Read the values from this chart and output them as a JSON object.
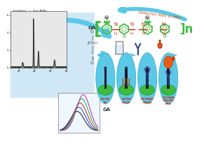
{
  "bg_color": "#ffffff",
  "cell_ellipse_color": "#5bc8e8",
  "cell_green_color": "#3dbb3d",
  "cell_dark_color": "#1a1a2e",
  "bottom_text": "Aniline + Ag NPs\nin 1 M HCl",
  "arrow_color_blue": "#5bc8e8",
  "detect_text": "Detection SWV in PBS :",
  "ga_label": "GA",
  "chem_color": "#44bb44",
  "red_label_color": "#cc2200",
  "orange_color": "#e85c1a",
  "lab_bg_color": "#b8ddf0",
  "xrd_bg": "#e8e8e8",
  "swv_bg": "#f0f8ff",
  "cell_labels": [
    "GC/PA\nNi",
    "GC/PA\nNi/GA",
    "GC/PANI/\nGA/Ab",
    "GC/PANI\n/GA/Ab/\nPCB"
  ]
}
